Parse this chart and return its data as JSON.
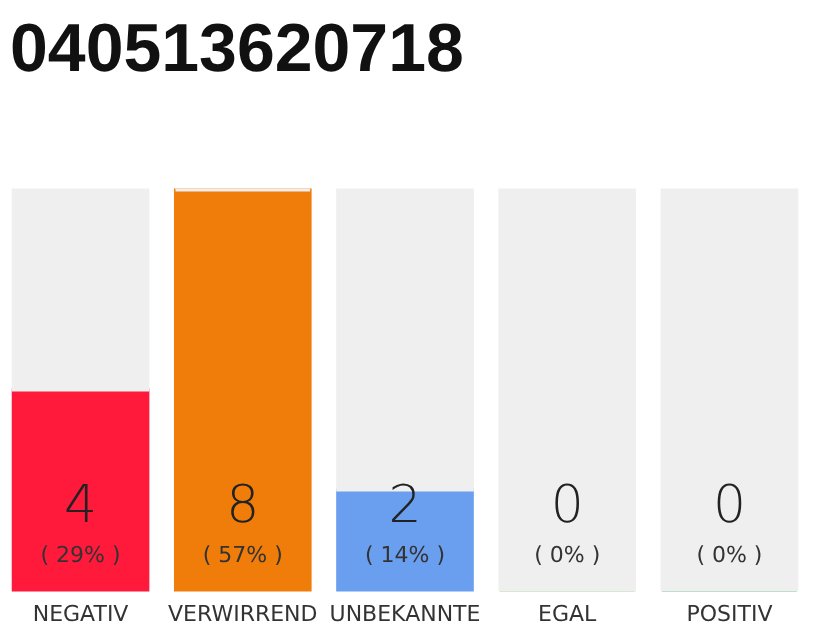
{
  "chart_data": {
    "type": "bar",
    "title": "040513620718",
    "categories": [
      "NEGATIV",
      "VERWIRREND",
      "UNBEKANNTE",
      "EGAL",
      "POSITIV"
    ],
    "ylim": [
      0,
      8
    ],
    "tick_labels": "x",
    "legend": false,
    "stacked": true,
    "series": [
      {
        "colors": [
          "#ff1a3c",
          "#f07d0a",
          "#6a9ff0",
          "#7ac36a",
          "#1aa34a"
        ],
        "values": [
          4,
          8,
          2,
          0,
          0
        ],
        "value_labels": [
          "4",
          "8",
          "2",
          "0",
          "0"
        ]
      },
      {
        "color": "#efefef",
        "values": [
          4,
          0,
          6,
          8,
          8
        ]
      }
    ],
    "annotations": [
      "( 29% )",
      "( 57% )",
      "( 14% )",
      "( 0% )",
      "( 0% )"
    ]
  }
}
